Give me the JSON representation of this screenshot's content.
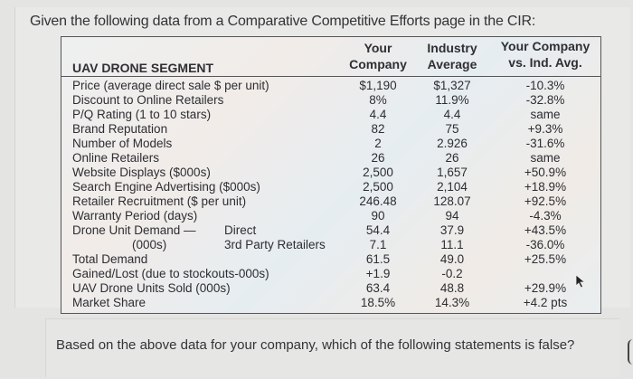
{
  "question": "Given the following data from a Comparative Competitive Efforts page in the CIR:",
  "table": {
    "segment_title": "UAV DRONE SEGMENT",
    "headers": {
      "col1_line1": "Your",
      "col1_line2": "Company",
      "col2_line1": "Industry",
      "col2_line2": "Average",
      "col3_line1": "Your Company",
      "col3_line2": "vs. Ind. Avg."
    },
    "rows": [
      {
        "label": "Price (average direct sale $ per unit)",
        "company": "$1,190",
        "industry": "$1,327",
        "vs": "-10.3%"
      },
      {
        "label": "Discount to Online Retailers",
        "company": "8%",
        "industry": "11.9%",
        "vs": "-32.8%"
      },
      {
        "label": "P/Q Rating (1 to 10 stars)",
        "company": "4.4",
        "industry": "4.4",
        "vs": "same"
      },
      {
        "label": "Brand Reputation",
        "company": "82",
        "industry": "75",
        "vs": "+9.3%"
      },
      {
        "label": "Number of Models",
        "company": "2",
        "industry": "2.926",
        "vs": "-31.6%"
      },
      {
        "label": "Online Retailers",
        "company": "26",
        "industry": "26",
        "vs": "same"
      },
      {
        "label": "Website Displays ($000s)",
        "company": "2,500",
        "industry": "1,657",
        "vs": "+50.9%"
      },
      {
        "label": "Search Engine Advertising ($000s)",
        "company": "2,500",
        "industry": "2,104",
        "vs": "+18.9%"
      },
      {
        "label": "Retailer Recruitment ($ per unit)",
        "company": "246.48",
        "industry": "128.07",
        "vs": "+92.5%"
      },
      {
        "label": "Warranty Period (days)",
        "company": "90",
        "industry": "94",
        "vs": "-4.3%"
      },
      {
        "label": "Drone Unit Demand —",
        "sublabel": "Direct",
        "company": "54.4",
        "industry": "37.9",
        "vs": "+43.5%"
      },
      {
        "label": "(000s)",
        "sublabel": "3rd Party Retailers",
        "company": "7.1",
        "industry": "11.1",
        "vs": "-36.0%"
      },
      {
        "label": "Total Demand",
        "company": "61.5",
        "industry": "49.0",
        "vs": "+25.5%"
      },
      {
        "label": "Gained/Lost (due to stockouts-000s)",
        "company": "+1.9",
        "industry": "-0.2",
        "vs": ""
      },
      {
        "label": "UAV Drone Units Sold (000s)",
        "company": "63.4",
        "industry": "48.8",
        "vs": "+29.9%"
      },
      {
        "label": "Market Share",
        "company": "18.5%",
        "industry": "14.3%",
        "vs": "+4.2 pts"
      }
    ]
  },
  "prompt": "Based on the above data for your company, which of the following statements is false?",
  "icons": {
    "cursor": "mouse-pointer-icon"
  }
}
